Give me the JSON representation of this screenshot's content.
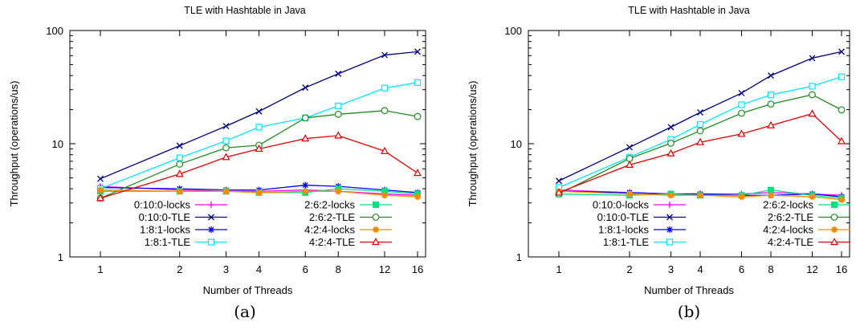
{
  "chart_data": [
    {
      "type": "line",
      "title": "TLE with Hashtable in Java",
      "xlabel": "Number of Threads",
      "ylabel": "Throughput (operations/us)",
      "caption": "(a)",
      "x": [
        1,
        2,
        3,
        4,
        6,
        8,
        12,
        16
      ],
      "x_scale": "log2",
      "y_scale": "log10",
      "ylim": [
        1,
        100
      ],
      "y_ticks": [
        1,
        10,
        100
      ],
      "grid": false,
      "legend_position": "bottom-inside",
      "series": [
        {
          "name": "0:10:0-locks",
          "color": "#ff00ff",
          "marker": "plus",
          "values": [
            4.2,
            3.9,
            3.8,
            3.8,
            3.9,
            3.8,
            3.6,
            3.5
          ]
        },
        {
          "name": "0:10:0-TLE",
          "color": "#000080",
          "marker": "x",
          "values": [
            4.9,
            9.6,
            14.3,
            19.3,
            31.3,
            41.5,
            60.7,
            65.0
          ]
        },
        {
          "name": "1:8:1-locks",
          "color": "#0000ff",
          "marker": "star",
          "values": [
            4.1,
            4.0,
            3.9,
            3.9,
            4.3,
            4.2,
            3.9,
            3.7
          ]
        },
        {
          "name": "1:8:1-TLE",
          "color": "#00e5ff",
          "marker": "square",
          "values": [
            4.0,
            7.5,
            10.6,
            14.0,
            16.9,
            21.6,
            31.0,
            34.7
          ]
        },
        {
          "name": "2:6:2-locks",
          "color": "#00e080",
          "marker": "filled-square",
          "values": [
            3.8,
            3.8,
            3.8,
            3.7,
            3.7,
            4.0,
            3.8,
            3.6
          ]
        },
        {
          "name": "2:6:2-TLE",
          "color": "#228b22",
          "marker": "circle",
          "values": [
            3.3,
            6.6,
            9.2,
            9.7,
            16.9,
            18.2,
            19.6,
            17.4
          ]
        },
        {
          "name": "4:2:4-locks",
          "color": "#ff8c00",
          "marker": "filled-circle",
          "values": [
            3.9,
            3.8,
            3.8,
            3.7,
            3.8,
            3.8,
            3.5,
            3.4
          ]
        },
        {
          "name": "4:2:4-TLE",
          "color": "#e00000",
          "marker": "triangle",
          "values": [
            3.3,
            5.4,
            7.6,
            9.0,
            11.1,
            11.8,
            8.6,
            5.5
          ]
        }
      ]
    },
    {
      "type": "line",
      "title": "TLE with Hashtable in Java",
      "xlabel": "Number of Threads",
      "ylabel": "Throughput (operations/us)",
      "caption": "(b)",
      "x": [
        1,
        2,
        3,
        4,
        6,
        8,
        12,
        16
      ],
      "x_scale": "log2",
      "y_scale": "log10",
      "ylim": [
        1,
        100
      ],
      "y_ticks": [
        1,
        10,
        100
      ],
      "grid": false,
      "legend_position": "bottom-inside",
      "series": [
        {
          "name": "0:10:0-locks",
          "color": "#ff00ff",
          "marker": "plus",
          "values": [
            3.9,
            3.7,
            3.6,
            3.6,
            3.6,
            3.7,
            3.6,
            3.5
          ]
        },
        {
          "name": "0:10:0-TLE",
          "color": "#000080",
          "marker": "x",
          "values": [
            4.7,
            9.3,
            14.0,
            18.9,
            28.0,
            40.0,
            57.0,
            65.0
          ]
        },
        {
          "name": "1:8:1-locks",
          "color": "#0000ff",
          "marker": "star",
          "values": [
            3.8,
            3.7,
            3.6,
            3.6,
            3.5,
            3.5,
            3.6,
            3.4
          ]
        },
        {
          "name": "1:8:1-TLE",
          "color": "#00e5ff",
          "marker": "square",
          "values": [
            4.1,
            7.6,
            10.9,
            14.8,
            22.1,
            27.0,
            32.2,
            39.0
          ]
        },
        {
          "name": "2:6:2-locks",
          "color": "#00e080",
          "marker": "filled-square",
          "values": [
            3.6,
            3.5,
            3.6,
            3.5,
            3.5,
            3.9,
            3.5,
            3.3
          ]
        },
        {
          "name": "2:6:2-TLE",
          "color": "#228b22",
          "marker": "circle",
          "values": [
            3.6,
            7.4,
            10.1,
            13.0,
            18.6,
            22.4,
            27.1,
            19.9
          ]
        },
        {
          "name": "4:2:4-locks",
          "color": "#ff8c00",
          "marker": "filled-circle",
          "values": [
            3.8,
            3.6,
            3.5,
            3.5,
            3.4,
            3.5,
            3.4,
            3.2
          ]
        },
        {
          "name": "4:2:4-TLE",
          "color": "#e00000",
          "marker": "triangle",
          "values": [
            3.7,
            6.5,
            8.2,
            10.3,
            12.2,
            14.5,
            18.4,
            10.5
          ]
        }
      ]
    }
  ]
}
